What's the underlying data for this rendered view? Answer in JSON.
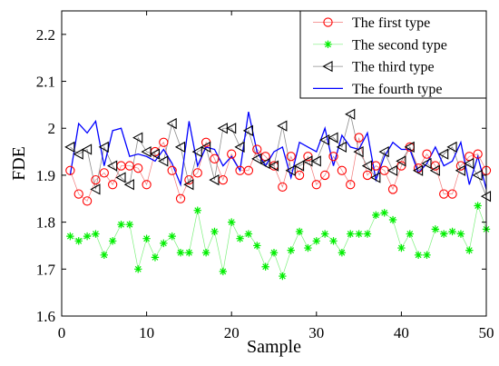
{
  "chart_data": {
    "type": "line",
    "xlabel": "Sample",
    "ylabel": "FDE",
    "xlim": [
      0,
      50
    ],
    "ylim": [
      1.6,
      2.25
    ],
    "x_ticks": [
      "0",
      "10",
      "20",
      "30",
      "40",
      "50"
    ],
    "y_ticks": [
      "1.6",
      "1.7",
      "1.8",
      "1.9",
      "2",
      "2.1",
      "2.2"
    ],
    "grid": false,
    "legend_position": "top-right",
    "x": [
      1,
      2,
      3,
      4,
      5,
      6,
      7,
      8,
      9,
      10,
      11,
      12,
      13,
      14,
      15,
      16,
      17,
      18,
      19,
      20,
      21,
      22,
      23,
      24,
      25,
      26,
      27,
      28,
      29,
      30,
      31,
      32,
      33,
      34,
      35,
      36,
      37,
      38,
      39,
      40,
      41,
      42,
      43,
      44,
      45,
      46,
      47,
      48,
      49,
      50
    ],
    "series": [
      {
        "name": "The first type",
        "marker": "circle",
        "color": "#ff0000",
        "line_color": "#f27878",
        "values": [
          1.91,
          1.86,
          1.845,
          1.89,
          1.905,
          1.88,
          1.92,
          1.92,
          1.915,
          1.88,
          1.95,
          1.97,
          1.91,
          1.85,
          1.89,
          1.905,
          1.97,
          1.935,
          1.89,
          1.945,
          1.91,
          1.91,
          1.955,
          1.94,
          1.92,
          1.875,
          1.94,
          1.9,
          1.94,
          1.88,
          1.9,
          1.94,
          1.91,
          1.88,
          1.98,
          1.9,
          1.92,
          1.91,
          1.87,
          1.92,
          1.96,
          1.915,
          1.945,
          1.92,
          1.86,
          1.86,
          1.92,
          1.94,
          1.945,
          1.91
        ]
      },
      {
        "name": "The second type",
        "marker": "asterisk",
        "color": "#00ee00",
        "line_color": "#7cf07c",
        "values": [
          1.77,
          1.76,
          1.77,
          1.775,
          1.73,
          1.76,
          1.795,
          1.795,
          1.7,
          1.765,
          1.725,
          1.755,
          1.77,
          1.735,
          1.735,
          1.825,
          1.735,
          1.78,
          1.695,
          1.8,
          1.765,
          1.775,
          1.75,
          1.705,
          1.735,
          1.685,
          1.74,
          1.78,
          1.745,
          1.76,
          1.775,
          1.76,
          1.735,
          1.775,
          1.775,
          1.775,
          1.815,
          1.82,
          1.805,
          1.745,
          1.775,
          1.73,
          1.73,
          1.785,
          1.775,
          1.78,
          1.775,
          1.74,
          1.835,
          1.785
        ]
      },
      {
        "name": "The third type",
        "marker": "triangle-left",
        "color": "#000000",
        "line_color": "#8c8c8c",
        "values": [
          1.96,
          1.945,
          1.955,
          1.87,
          1.96,
          1.92,
          1.895,
          1.88,
          1.98,
          1.95,
          1.945,
          1.93,
          2.01,
          1.96,
          1.88,
          1.95,
          1.96,
          1.89,
          2.0,
          2.0,
          1.96,
          1.995,
          1.935,
          1.925,
          1.92,
          2.005,
          1.91,
          1.92,
          1.93,
          1.93,
          1.975,
          1.98,
          1.96,
          2.03,
          1.95,
          1.92,
          1.895,
          1.95,
          1.91,
          1.93,
          1.96,
          1.91,
          1.925,
          1.91,
          1.945,
          1.96,
          1.91,
          1.925,
          1.9,
          1.855
        ]
      },
      {
        "name": "The fourth type",
        "marker": "none",
        "color": "#0000ff",
        "line_color": "#0000ff",
        "values": [
          1.9,
          2.01,
          1.99,
          2.015,
          1.92,
          1.995,
          2.0,
          1.94,
          1.945,
          1.94,
          1.93,
          1.955,
          1.925,
          1.88,
          2.015,
          1.92,
          1.96,
          1.955,
          1.92,
          1.94,
          1.91,
          2.035,
          1.95,
          1.92,
          1.95,
          1.96,
          1.895,
          1.97,
          1.96,
          1.95,
          2.0,
          1.92,
          1.985,
          1.96,
          1.955,
          1.99,
          1.89,
          1.94,
          1.97,
          1.955,
          1.955,
          1.905,
          1.925,
          1.96,
          1.92,
          1.93,
          1.97,
          1.88,
          1.94,
          1.87
        ]
      }
    ]
  }
}
